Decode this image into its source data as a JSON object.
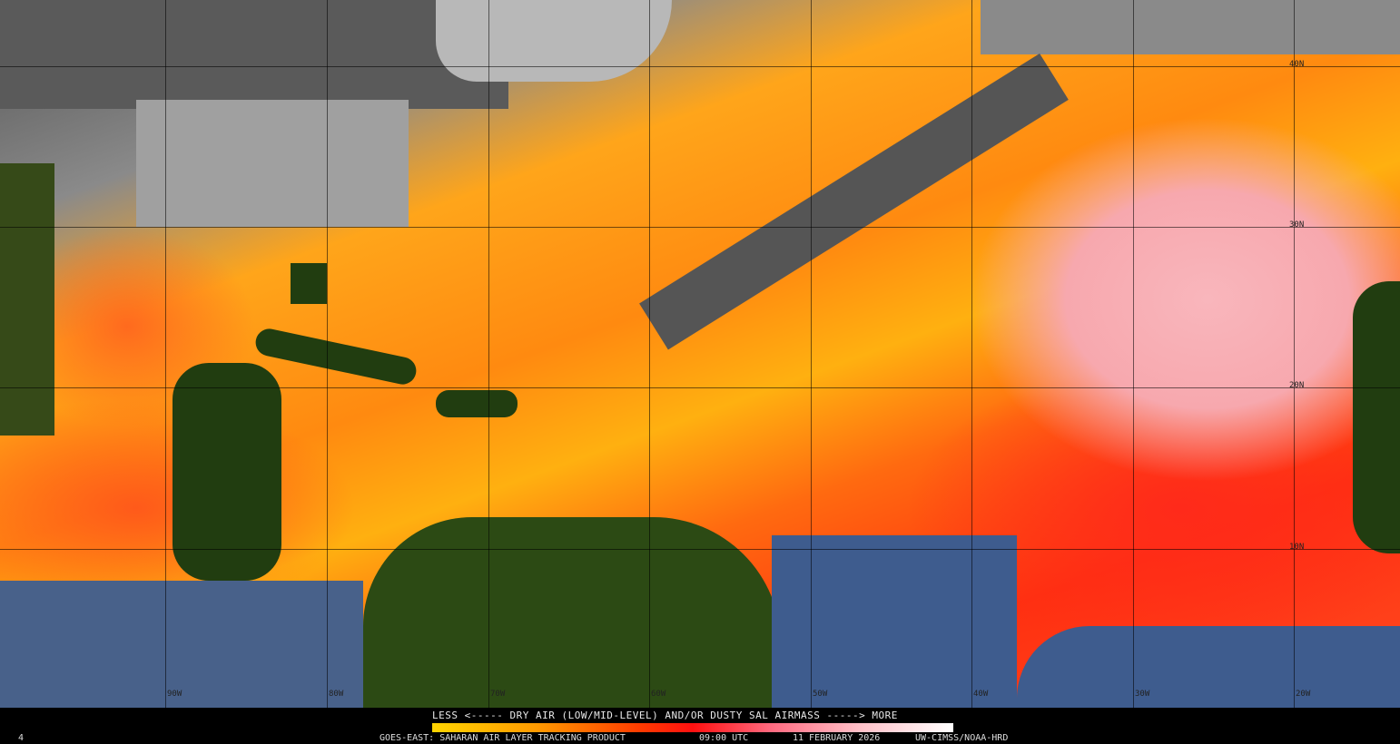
{
  "map": {
    "lat_labels": [
      "40N",
      "30N",
      "20N",
      "10N"
    ],
    "lon_labels": [
      "90W",
      "80W",
      "70W",
      "60W",
      "50W",
      "40W",
      "30W",
      "20W"
    ]
  },
  "legend": {
    "title": "LESS <----- DRY AIR (LOW/MID-LEVEL) AND/OR DUSTY SAL AIRMASS -----> MORE",
    "colors": [
      "#ffd400",
      "#ff9a00",
      "#ff1010",
      "#ffc0c8",
      "#ffffff"
    ]
  },
  "footer": {
    "corner": "4",
    "product": "GOES-EAST: SAHARAN AIR LAYER TRACKING PRODUCT",
    "time": "09:00 UTC",
    "date": "11 FEBRUARY 2026",
    "credit": "UW-CIMSS/NOAA-HRD"
  }
}
